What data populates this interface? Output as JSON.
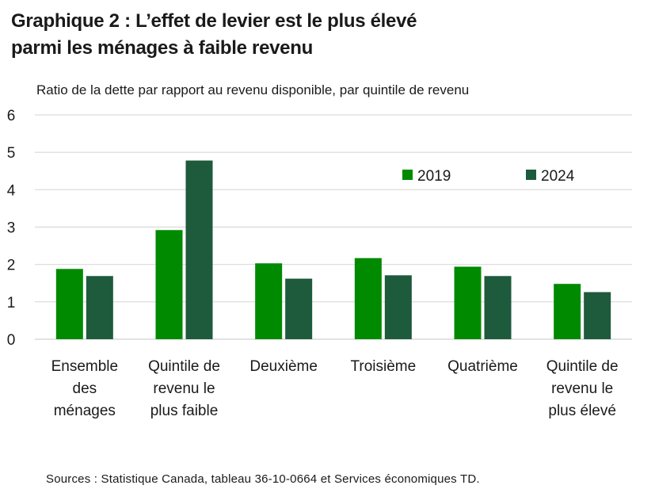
{
  "title_line1": "Graphique 2 : L’effet de levier est le plus élevé",
  "title_line2": "parmi les ménages à faible revenu",
  "source": "Sources : Statistique Canada, tableau 36-10-0664 et Services économiques TD.",
  "colors": {
    "series_2019": "#008a00",
    "series_2024": "#1e5a3c",
    "grid": "#d9d9d9",
    "text": "#1a1a1a"
  },
  "chart_data": {
    "type": "bar",
    "title": "Graphique 2 : L’effet de levier est le plus élevé parmi les ménages à faible revenu",
    "ylabel": "Ratio de la dette par rapport au revenu disponible, par quintile de revenu",
    "xlabel": "",
    "ylim": [
      0,
      6
    ],
    "yticks": [
      "0",
      "1",
      "2",
      "3",
      "4",
      "5",
      "6"
    ],
    "grid": true,
    "legend": "top-right",
    "categories": [
      [
        "Ensemble",
        "des",
        "ménages"
      ],
      [
        "Quintile de",
        "revenu le",
        "plus faible"
      ],
      [
        "Deuxième"
      ],
      [
        "Troisième"
      ],
      [
        "Quatrième"
      ],
      [
        "Quintile de",
        "revenu le",
        "plus élevé"
      ]
    ],
    "series": [
      {
        "name": "2019",
        "values": [
          1.88,
          2.92,
          2.03,
          2.17,
          1.94,
          1.48
        ]
      },
      {
        "name": "2024",
        "values": [
          1.69,
          4.78,
          1.62,
          1.71,
          1.69,
          1.26
        ]
      }
    ]
  }
}
